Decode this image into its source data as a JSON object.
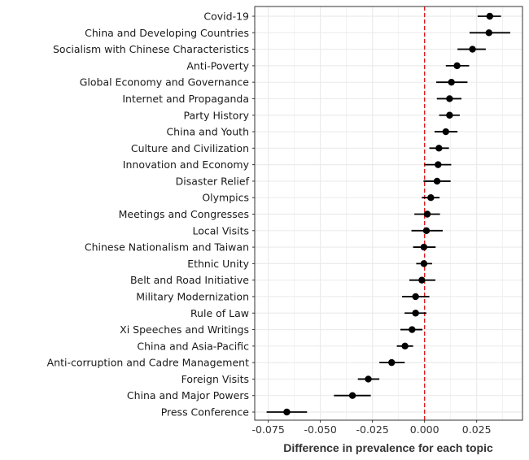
{
  "chart_data": {
    "type": "scatter",
    "subtype": "point-range",
    "title": "",
    "xlabel": "Difference in prevalence for each topic",
    "ylabel": "",
    "xlim": [
      -0.0815,
      0.047
    ],
    "xticks": [
      -0.075,
      -0.05,
      -0.025,
      0,
      0.025
    ],
    "xtick_labels": [
      "-0.075",
      "-0.050",
      "-0.025",
      "0.000",
      "0.025"
    ],
    "grid": true,
    "reference_line": {
      "x": 0,
      "color": "#e41a1c",
      "style": "dashed"
    },
    "point_color": "#000000",
    "categories": [
      "Covid-19",
      "China and Developing Countries",
      "Socialism with Chinese Characteristics",
      "Anti-Poverty",
      "Global Economy and Governance",
      "Internet and Propaganda",
      "Party History",
      "China and Youth",
      "Culture and Civilization",
      "Innovation and Economy",
      "Disaster Relief",
      "Olympics",
      "Meetings and Congresses",
      "Local Visits",
      "Chinese Nationalism and Taiwan",
      "Ethnic Unity",
      "Belt and Road Initiative",
      "Military Modernization",
      "Rule of Law",
      "Xi Speeches and Writings",
      "China and Asia-Pacific",
      "Anti-corruption and Cadre Management",
      "Foreign Visits",
      "China and Major Powers",
      "Press Conference"
    ],
    "estimate": [
      0.0313,
      0.0309,
      0.023,
      0.0156,
      0.0129,
      0.012,
      0.012,
      0.0102,
      0.0069,
      0.0065,
      0.006,
      0.003,
      0.0013,
      0.0009,
      -0.0003,
      -0.0003,
      -0.0013,
      -0.0043,
      -0.0043,
      -0.006,
      -0.0094,
      -0.0158,
      -0.027,
      -0.0346,
      -0.0661
    ],
    "lower": [
      0.0255,
      0.0216,
      0.0158,
      0.0102,
      0.0056,
      0.0059,
      0.007,
      0.0048,
      0.0023,
      0.0,
      -0.0005,
      -0.0013,
      -0.0049,
      -0.0063,
      -0.0055,
      -0.004,
      -0.0073,
      -0.0108,
      -0.0096,
      -0.0116,
      -0.0133,
      -0.0217,
      -0.032,
      -0.0435,
      -0.0758
    ],
    "upper": [
      0.0367,
      0.0411,
      0.0294,
      0.0214,
      0.0206,
      0.0177,
      0.0169,
      0.0158,
      0.0117,
      0.0128,
      0.0125,
      0.0072,
      0.0074,
      0.0087,
      0.0053,
      0.0036,
      0.0052,
      0.0023,
      0.0009,
      -0.001,
      -0.0055,
      -0.0095,
      -0.0217,
      -0.0258,
      -0.0564
    ]
  }
}
